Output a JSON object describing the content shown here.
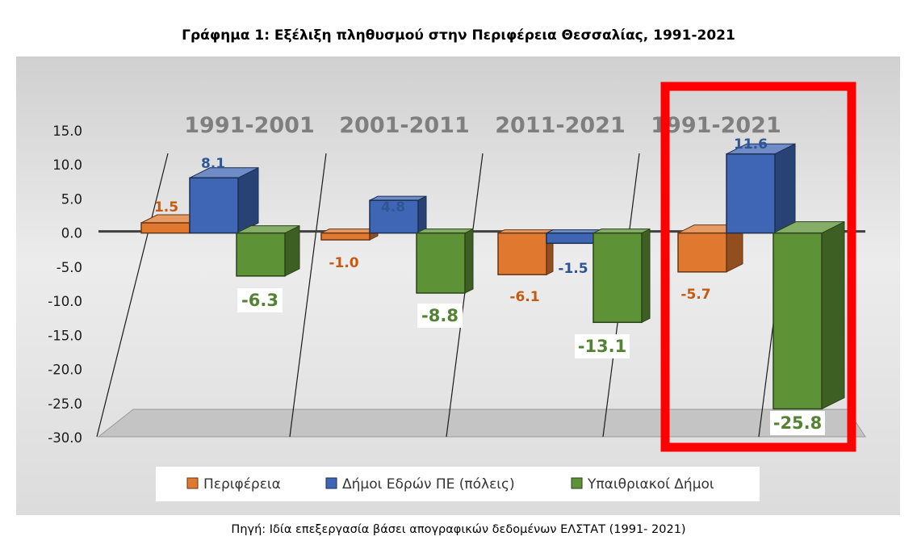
{
  "chart_data": {
    "type": "bar",
    "title": "Γράφημα 1: Εξέλιξη πληθυσμού στην Περιφέρεια Θεσσαλίας, 1991-2021",
    "categories": [
      "1991-2001",
      "2001-2011",
      "2011-2021",
      "1991-2021"
    ],
    "series": [
      {
        "name": "Περιφέρεια",
        "values": [
          1.5,
          -1.0,
          -6.1,
          -5.7
        ],
        "labels": [
          "1.5",
          "-1.0",
          "-6.1",
          "-5.7"
        ]
      },
      {
        "name": "Δήμοι Εδρών ΠΕ (πόλεις)",
        "values": [
          8.1,
          4.8,
          -1.5,
          11.6
        ],
        "labels": [
          "8.1",
          "4.8",
          "-1.5",
          "11.6"
        ]
      },
      {
        "name": "Υπαιθριακοί Δήμοι",
        "values": [
          -6.3,
          -8.8,
          -13.1,
          -25.8
        ],
        "labels": [
          "-6.3",
          "-8.8",
          "-13.1",
          "-25.8"
        ]
      }
    ],
    "ylim": [
      -30,
      15
    ],
    "yticks": [
      "15.0",
      "10.0",
      "5.0",
      "0.0",
      "-5.0",
      "-10.0",
      "-15.0",
      "-20.0",
      "-25.0",
      "-30.0"
    ],
    "colors": [
      "#E0782F",
      "#3F66B4",
      "#5E9236"
    ],
    "label_colors": [
      "#C55A11",
      "#2F5597",
      "#548235"
    ],
    "legend_position": "bottom",
    "highlight_category": "1991-2021",
    "highlight_color": "#FF0000"
  },
  "source": "Πηγή: Ιδία επεξεργασία βάσει απογραφικών δεδομένων ΕΛΣΤΑΤ (1991- 2021)"
}
